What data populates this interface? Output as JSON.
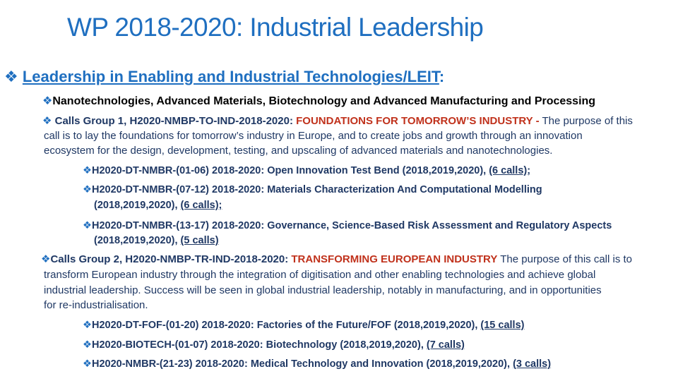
{
  "title": "WP 2018-2020: Industrial Leadership",
  "bullet_glyph": "❖",
  "leit_heading": "Leadership in Enabling and Industrial Technologies/LEIT",
  "leit_colon": ":",
  "nano_heading": "Nanotechnologies, Advanced Materials, Biotechnology and Advanced Manufacturing and Processing",
  "group1": {
    "label": "Calls Group 1, H2020-NMBP-TO-IND-2018-2020: ",
    "name": "FOUNDATIONS FOR TOMORROW’S INDUSTRY -",
    "desc_line1": " The purpose of this",
    "desc_line2": "call is to lay the foundations for tomorrow’s industry in Europe, and to create jobs and growth through an innovation",
    "desc_line3": "ecosystem for the design, development, testing, and upscaling of advanced materials and nanotechnologies.",
    "items": [
      {
        "text": "H2020-DT-NMBR-(01-06) 2018-2020: Open Innovation Test Bend (2018,2019,2020), ",
        "calls": "(6 calls);",
        "cont": ""
      },
      {
        "text": "H2020-DT-NMBR-(07-12) 2018-2020: Materials Characterization And Computational Modelling",
        "cont": "(2018,2019,2020), ",
        "calls": "(6 calls);"
      },
      {
        "text": "H2020-DT-NMBR-(13-17) 2018-2020: Governance, Science-Based Risk Assessment and Regulatory Aspects",
        "cont": "(2018,2019,2020), ",
        "calls": "(5 calls)"
      }
    ]
  },
  "group2": {
    "label": "Calls Group 2, H2020-NMBP-TR-IND-2018-2020: ",
    "name": "TRANSFORMING EUROPEAN INDUSTRY",
    "desc_line1": " The purpose of this call is to",
    "desc_line2": "transform European industry through the integration of digitisation and other enabling technologies and achieve global",
    "desc_line3": "industrial leadership. Success will be seen in global industrial leadership, notably in manufacturing, and in opportunities",
    "desc_line4": "for re-industrialisation.",
    "items": [
      {
        "text": "H2020-DT-FOF-(01-20) 2018-2020: Factories of the Future/FOF (2018,2019,2020), ",
        "calls": "(15 calls)"
      },
      {
        "text": "H2020-BIOTECH-(01-07) 2018-2020: Biotechnology (2018,2019,2020), ",
        "calls": "(7 calls)"
      },
      {
        "text": "H2020-NMBR-(21-23) 2018-2020: Medical Technology and Innovation (2018,2019,2020), ",
        "calls": "(3 calls)"
      }
    ]
  }
}
